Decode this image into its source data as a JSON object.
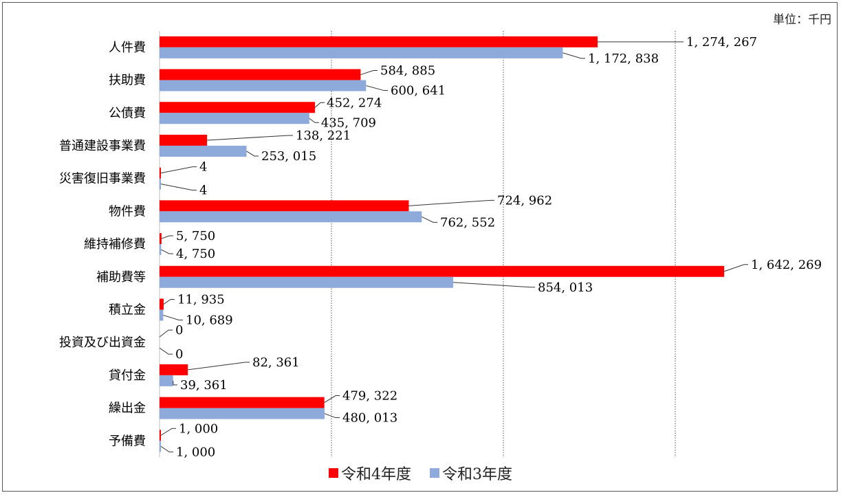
{
  "unit_label": "単位：千円",
  "chart_data": {
    "type": "bar",
    "orientation": "horizontal",
    "categories": [
      "人件費",
      "扶助費",
      "公債費",
      "普通建設事業費",
      "災害復旧事業費",
      "物件費",
      "維持補修費",
      "補助費等",
      "積立金",
      "投資及び出資金",
      "貸付金",
      "繰出金",
      "予備費"
    ],
    "series": [
      {
        "name": "令和4年度",
        "color": "#ff0000",
        "values": [
          1274267,
          584885,
          452274,
          138221,
          4,
          724962,
          5750,
          1642269,
          11935,
          0,
          82361,
          479322,
          1000
        ],
        "labels": [
          "1, 274, 267",
          "584, 885",
          "452, 274",
          "138, 221",
          "4",
          "724, 962",
          "5, 750",
          "1, 642, 269",
          "11, 935",
          "0",
          "82, 361",
          "479, 322",
          "1, 000"
        ]
      },
      {
        "name": "令和3年度",
        "color": "#8eaadb",
        "values": [
          1172838,
          600641,
          435709,
          253015,
          4,
          762552,
          4750,
          854013,
          10689,
          0,
          39361,
          480013,
          1000
        ],
        "labels": [
          "1, 172, 838",
          "600, 641",
          "435, 709",
          "253, 015",
          "4",
          "762, 552",
          "4, 750",
          "854, 013",
          "10, 689",
          "0",
          "39, 361",
          "480, 013",
          "1, 000"
        ]
      }
    ],
    "xlim": [
      0,
      2000000
    ],
    "grid": "vertical-dotted",
    "legend": "bottom"
  }
}
